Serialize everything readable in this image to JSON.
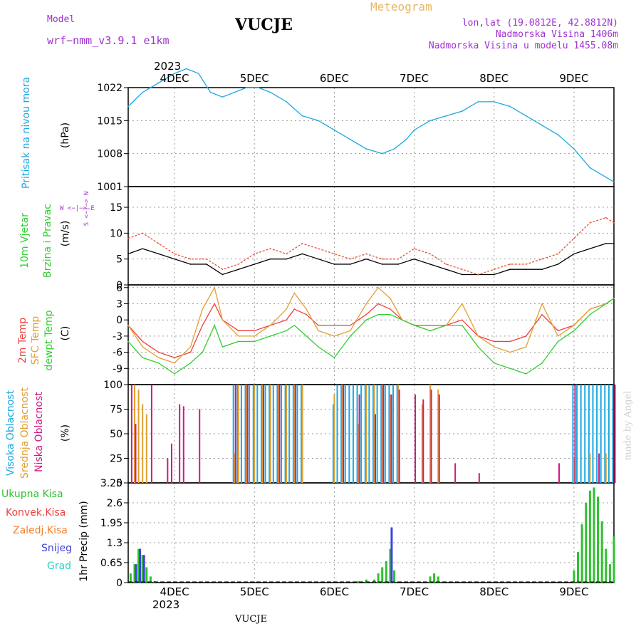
{
  "header": {
    "model_label": "Model",
    "model_name": "wrf−nmm_v3.9.1  e1km",
    "station": "VUCJE",
    "product": "Meteogram",
    "lonlat": "lon,lat (19.0812E, 42.8812N)",
    "elevation": "Nadmorska Visina 1406m",
    "model_elevation": "Nadmorska Visina u modelu 1455.08m",
    "credit": "made by Angel",
    "footer_station": "VUCJE"
  },
  "colors": {
    "pressure": "#1aa8e0",
    "wind_speed": "#000000",
    "wind_gust": "#e8503a",
    "temp2m": "#f04040",
    "sfc_temp": "#e0a030",
    "dewpoint": "#30d030",
    "high_cloud": "#1aa8e0",
    "mid_cloud": "#e0a030",
    "low_cloud": "#d01880",
    "total_precip": "#30c030",
    "conv_precip": "#f04040",
    "freezing_precip": "#f08030",
    "snow": "#4040e0",
    "graupel": "#30d0c0",
    "title": "#000000",
    "header_purple": "#a030d0",
    "header_orange": "#e8b860"
  },
  "x_axis": {
    "year_top": "2023",
    "year_bottom": "2023",
    "day_labels": [
      "4DEC",
      "5DEC",
      "6DEC",
      "7DEC",
      "8DEC",
      "9DEC"
    ],
    "range_days": [
      -0.58,
      5.5
    ]
  },
  "chart_data": [
    {
      "type": "line",
      "panel": "pressure",
      "ylabel_main": "Pritisak na nivou mora",
      "ylabel_unit": "(hPa)",
      "yticks": [
        "1022",
        "1015",
        "1008",
        "1001"
      ],
      "ylim": [
        1001,
        1022
      ],
      "series": [
        {
          "x": [
            -0.58,
            -0.4,
            -0.2,
            0.0,
            0.15,
            0.3,
            0.45,
            0.6,
            0.75,
            0.9,
            1.05,
            1.2,
            1.4,
            1.6,
            1.8,
            2.0,
            2.2,
            2.4,
            2.6,
            2.75,
            2.9,
            3.0,
            3.2,
            3.4,
            3.6,
            3.8,
            4.0,
            4.2,
            4.4,
            4.6,
            4.8,
            5.0,
            5.2,
            5.4,
            5.5
          ],
          "y": [
            1018,
            1021,
            1023,
            1025,
            1026,
            1025,
            1021,
            1020,
            1021,
            1022,
            1022,
            1021,
            1019,
            1016,
            1015,
            1013,
            1011,
            1009,
            1008,
            1009,
            1011,
            1013,
            1015,
            1016,
            1017,
            1019,
            1019,
            1018,
            1016,
            1014,
            1012,
            1009,
            1005,
            1003,
            1002
          ]
        }
      ]
    },
    {
      "type": "line",
      "panel": "wind",
      "ylabel_main": "10m Vjetar",
      "ylabel_sub": "Brzina i Pravac",
      "ylabel_unit": "(m/s)",
      "compass_label": "W <−|−> E",
      "compass_vertical": "S <−|−> N",
      "yticks": [
        "15",
        "10",
        "5",
        "0"
      ],
      "ylim": [
        0,
        19
      ],
      "series": [
        {
          "x": [
            -0.58,
            -0.4,
            -0.2,
            0.0,
            0.2,
            0.4,
            0.6,
            0.8,
            1.0,
            1.2,
            1.4,
            1.6,
            1.8,
            2.0,
            2.2,
            2.4,
            2.6,
            2.8,
            3.0,
            3.2,
            3.4,
            3.6,
            3.8,
            4.0,
            4.2,
            4.4,
            4.6,
            4.8,
            5.0,
            5.2,
            5.4,
            5.5
          ],
          "y": [
            6,
            7,
            6,
            5,
            4,
            4,
            2,
            3,
            4,
            5,
            5,
            6,
            5,
            4,
            4,
            5,
            4,
            4,
            5,
            4,
            3,
            2,
            2,
            2,
            3,
            3,
            3,
            4,
            6,
            7,
            8,
            8
          ]
        },
        {
          "x": [
            -0.58,
            -0.4,
            -0.2,
            0.0,
            0.2,
            0.4,
            0.6,
            0.8,
            1.0,
            1.2,
            1.4,
            1.6,
            1.8,
            2.0,
            2.2,
            2.4,
            2.6,
            2.8,
            3.0,
            3.2,
            3.4,
            3.6,
            3.8,
            4.0,
            4.2,
            4.4,
            4.6,
            4.8,
            5.0,
            5.2,
            5.4,
            5.5
          ],
          "y": [
            9,
            10,
            8,
            6,
            5,
            5,
            3,
            4,
            6,
            7,
            6,
            8,
            7,
            6,
            5,
            6,
            5,
            5,
            7,
            6,
            4,
            3,
            2,
            3,
            4,
            4,
            5,
            6,
            9,
            12,
            13,
            12
          ]
        }
      ]
    },
    {
      "type": "line",
      "panel": "temperature",
      "ylabel_a": "2m Temp",
      "ylabel_b": "SFC Temp",
      "ylabel_c": "dewpt Temp",
      "ylabel_unit": "(C)",
      "yticks": [
        "6",
        "3",
        "0",
        "-3",
        "-6",
        "-9"
      ],
      "ylim": [
        -12,
        6.5
      ],
      "series": [
        {
          "x": [
            -0.58,
            -0.4,
            -0.2,
            0.0,
            0.2,
            0.35,
            0.5,
            0.6,
            0.8,
            1.0,
            1.2,
            1.4,
            1.5,
            1.65,
            1.8,
            2.0,
            2.2,
            2.4,
            2.55,
            2.7,
            2.85,
            3.0,
            3.2,
            3.4,
            3.6,
            3.8,
            4.0,
            4.2,
            4.4,
            4.6,
            4.8,
            5.0,
            5.2,
            5.4,
            5.5
          ],
          "y": [
            -1,
            -4,
            -6,
            -7,
            -6,
            -1,
            3,
            0,
            -2,
            -2,
            -1,
            0,
            2,
            1,
            -1,
            -1,
            -1,
            1,
            3,
            2,
            0,
            -1,
            -1,
            -1,
            0,
            -3,
            -4,
            -4,
            -3,
            1,
            -2,
            -1,
            2,
            3,
            4
          ]
        },
        {
          "x": [
            -0.58,
            -0.4,
            -0.2,
            0.0,
            0.2,
            0.35,
            0.5,
            0.6,
            0.8,
            1.0,
            1.2,
            1.4,
            1.5,
            1.65,
            1.8,
            2.0,
            2.2,
            2.4,
            2.55,
            2.7,
            2.85,
            3.0,
            3.2,
            3.4,
            3.6,
            3.8,
            4.0,
            4.2,
            4.4,
            4.6,
            4.8,
            5.0,
            5.2,
            5.4,
            5.5
          ],
          "y": [
            -1,
            -5,
            -7,
            -8,
            -5,
            2,
            6,
            0,
            -3,
            -3,
            -1,
            2,
            5,
            2,
            -2,
            -3,
            -2,
            3,
            6,
            4,
            0,
            -1,
            -2,
            -1,
            3,
            -3,
            -5,
            -6,
            -5,
            3,
            -3,
            -1,
            2,
            3,
            4
          ]
        },
        {
          "x": [
            -0.58,
            -0.4,
            -0.2,
            0.0,
            0.2,
            0.35,
            0.5,
            0.6,
            0.8,
            1.0,
            1.2,
            1.4,
            1.5,
            1.65,
            1.8,
            2.0,
            2.2,
            2.4,
            2.55,
            2.7,
            2.85,
            3.0,
            3.2,
            3.4,
            3.6,
            3.8,
            4.0,
            4.2,
            4.4,
            4.6,
            4.8,
            5.0,
            5.2,
            5.4,
            5.5
          ],
          "y": [
            -4,
            -7,
            -8,
            -10,
            -8,
            -6,
            -1,
            -5,
            -4,
            -4,
            -3,
            -2,
            -1,
            -3,
            -5,
            -7,
            -3,
            0,
            1,
            1,
            0,
            -1,
            -2,
            -1,
            -1,
            -5,
            -8,
            -9,
            -10,
            -8,
            -4,
            -2,
            1,
            3,
            4
          ]
        }
      ]
    },
    {
      "type": "bar",
      "panel": "cloud",
      "ylabel_a": "Visoka Oblacnost",
      "ylabel_b": "Srednja Oblacnost",
      "ylabel_c": "Niska Oblacnost",
      "ylabel_unit": "(%)",
      "yticks": [
        "100",
        "75",
        "50",
        "25",
        "0"
      ],
      "ylim": [
        0,
        100
      ],
      "series": [
        {
          "x": [
            0.75,
            0.8,
            0.85,
            0.9,
            0.95,
            1.0,
            1.05,
            1.1,
            1.15,
            1.2,
            1.25,
            1.3,
            1.35,
            1.4,
            1.45,
            1.5,
            1.55,
            1.6,
            2.0,
            2.05,
            2.1,
            2.15,
            2.2,
            2.25,
            2.3,
            2.35,
            2.4,
            2.45,
            2.5,
            2.55,
            2.6,
            2.65,
            2.7,
            2.75,
            2.8,
            5.0,
            5.05,
            5.1,
            5.15,
            5.2,
            5.25,
            5.3,
            5.35,
            5.4,
            5.45,
            5.5
          ],
          "values": [
            100,
            100,
            100,
            100,
            100,
            100,
            100,
            100,
            100,
            100,
            100,
            100,
            100,
            100,
            100,
            100,
            100,
            100,
            80,
            100,
            100,
            100,
            100,
            100,
            100,
            100,
            100,
            100,
            100,
            100,
            100,
            100,
            100,
            100,
            100,
            100,
            100,
            100,
            100,
            100,
            100,
            100,
            100,
            100,
            100,
            100
          ]
        },
        {
          "x": [
            -0.5,
            -0.45,
            -0.4,
            -0.35,
            0.75,
            0.8,
            0.9,
            1.0,
            1.1,
            1.2,
            1.3,
            1.4,
            1.5,
            1.6,
            2.0,
            2.1,
            2.3,
            2.4,
            2.5,
            2.6,
            2.7,
            2.8,
            3.1,
            3.2,
            3.3,
            5.0,
            5.2,
            5.4
          ],
          "values": [
            100,
            95,
            80,
            70,
            30,
            100,
            100,
            100,
            100,
            100,
            100,
            100,
            100,
            100,
            90,
            100,
            60,
            100,
            100,
            100,
            90,
            100,
            80,
            100,
            95,
            25,
            30,
            30
          ]
        },
        {
          "x": [
            -0.55,
            -0.5,
            -0.3,
            -0.1,
            -0.05,
            0.05,
            0.1,
            0.3,
            0.75,
            0.9,
            1.1,
            1.3,
            1.5,
            2.1,
            2.3,
            2.5,
            2.6,
            2.7,
            2.8,
            3.0,
            3.1,
            3.2,
            3.3,
            3.5,
            3.8,
            4.8,
            5.0,
            5.3,
            5.5
          ],
          "values": [
            100,
            60,
            100,
            25,
            40,
            80,
            78,
            75,
            100,
            100,
            100,
            100,
            100,
            100,
            90,
            70,
            100,
            90,
            95,
            90,
            85,
            95,
            90,
            20,
            10,
            20,
            100,
            30,
            100
          ]
        }
      ]
    },
    {
      "type": "bar",
      "panel": "precipitation",
      "ylabel_main": "1hr Precip (mm)",
      "legend": [
        "Ukupna Kisa",
        "Konvek.Kisa",
        "Zaledj.Kisa",
        "Snijeg",
        "Grad"
      ],
      "yticks": [
        "3.25",
        "2.6",
        "1.95",
        "1.3",
        "0.65",
        "0"
      ],
      "ylim": [
        0,
        3.25
      ],
      "series": [
        {
          "name": "Ukupna Kisa",
          "x": [
            -0.55,
            -0.5,
            -0.45,
            -0.4,
            -0.35,
            -0.3,
            -0.25,
            2.3,
            2.4,
            2.5,
            2.55,
            2.6,
            2.65,
            2.7,
            2.75,
            3.2,
            3.25,
            3.3,
            5.0,
            5.05,
            5.1,
            5.15,
            5.2,
            5.25,
            5.3,
            5.35,
            5.4,
            5.45,
            5.5
          ],
          "values": [
            0.3,
            0.6,
            1.1,
            0.9,
            0.5,
            0.2,
            0.05,
            0.05,
            0.1,
            0.1,
            0.3,
            0.5,
            0.7,
            1.1,
            0.4,
            0.2,
            0.3,
            0.2,
            0.4,
            1.0,
            1.9,
            2.6,
            3.0,
            3.1,
            2.8,
            2.0,
            1.1,
            0.6,
            1.5
          ]
        },
        {
          "name": "Snijeg",
          "x": [
            -0.5,
            -0.45,
            -0.4,
            2.7
          ],
          "values": [
            0.6,
            1.1,
            0.9,
            1.8
          ]
        }
      ]
    }
  ]
}
